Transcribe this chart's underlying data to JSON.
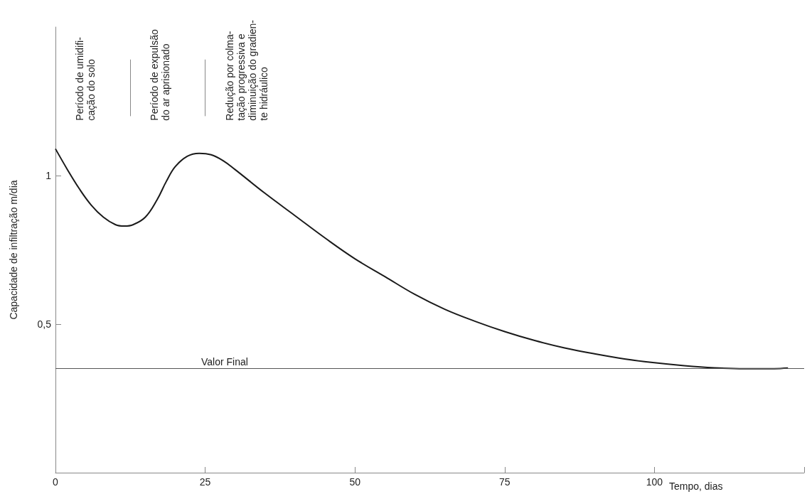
{
  "chart_data": {
    "type": "line",
    "xlabel": "Tempo, dias",
    "ylabel": "Capacidade de infiltração m/dia",
    "xlim": [
      0,
      125
    ],
    "xticks": [
      0,
      25,
      50,
      75,
      100,
      {
        "value": 125,
        "label": null
      }
    ],
    "ylim": [
      0,
      1.5
    ],
    "yticks": [
      {
        "value": 0.5,
        "label": "0,5"
      },
      1
    ],
    "grid": false,
    "marker": "none",
    "line_style": "solid",
    "x": [
      0,
      2,
      4,
      6,
      8,
      10,
      11.5,
      13,
      15,
      17,
      18.5,
      20,
      22,
      24,
      26,
      28,
      30,
      35,
      40,
      45,
      50,
      55,
      60,
      65,
      70,
      75,
      80,
      85,
      90,
      95,
      100,
      105,
      110,
      115,
      120,
      122.3
    ],
    "series": [
      {
        "color": "#1a1a1a",
        "values": [
          1.09,
          1.02,
          0.955,
          0.9,
          0.86,
          0.835,
          0.83,
          0.835,
          0.86,
          0.92,
          0.98,
          1.03,
          1.065,
          1.075,
          1.07,
          1.05,
          1.02,
          0.94,
          0.865,
          0.79,
          0.72,
          0.66,
          0.6,
          0.55,
          0.51,
          0.475,
          0.445,
          0.42,
          0.4,
          0.383,
          0.37,
          0.36,
          0.353,
          0.35,
          0.35,
          0.352
        ]
      }
    ],
    "ref_lines": [
      {
        "axis": "y",
        "value": 0.35,
        "label": "Valor Final",
        "color": "#555555"
      },
      {
        "axis": "x",
        "value": 12.5,
        "label": null,
        "color": "#888888"
      },
      {
        "axis": "x",
        "value": 25,
        "label": null,
        "color": "#888888"
      }
    ],
    "annotations": [
      "Período de umidifi-\ncação do solo",
      "Período de expulsão\ndo ar aprisionado",
      "Redução por colma-\ntação progressiva e\ndiminuição do gradien-\nte hidráulico"
    ]
  }
}
